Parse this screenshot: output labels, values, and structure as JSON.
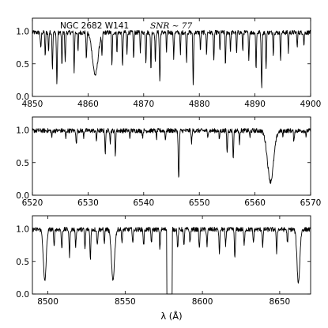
{
  "chart_data": [
    {
      "type": "line",
      "annotations": {
        "object": "NGC 2682 W141",
        "snr": "SNR ~ 77"
      },
      "xlim": [
        4850,
        4900
      ],
      "ylim": [
        0.0,
        1.2
      ],
      "xticks": [
        4850,
        4860,
        4870,
        4880,
        4890,
        4900
      ],
      "yticks": [
        0.0,
        0.5,
        1.0
      ],
      "xtick_labels": [
        "4850",
        "4860",
        "4870",
        "4880",
        "4890",
        "4900"
      ],
      "ytick_labels": [
        "0.0",
        "0.5",
        "1.0"
      ],
      "continuum": 0.98,
      "lines": [
        {
          "c": 4851.5,
          "d": 0.25,
          "w": 0.08
        },
        {
          "c": 4852.3,
          "d": 0.4,
          "w": 0.06
        },
        {
          "c": 4852.9,
          "d": 0.3,
          "w": 0.06
        },
        {
          "c": 4853.6,
          "d": 0.55,
          "w": 0.07
        },
        {
          "c": 4854.4,
          "d": 0.78,
          "w": 0.08
        },
        {
          "c": 4855.3,
          "d": 0.5,
          "w": 0.07
        },
        {
          "c": 4855.9,
          "d": 0.45,
          "w": 0.07
        },
        {
          "c": 4857.5,
          "d": 0.6,
          "w": 0.07
        },
        {
          "c": 4858.2,
          "d": 0.3,
          "w": 0.06
        },
        {
          "c": 4859.7,
          "d": 0.42,
          "w": 0.07
        },
        {
          "c": 4861.3,
          "d": 0.65,
          "w": 0.5
        },
        {
          "c": 4862.5,
          "d": 0.35,
          "w": 0.07
        },
        {
          "c": 4864.3,
          "d": 0.5,
          "w": 0.07
        },
        {
          "c": 4865.2,
          "d": 0.3,
          "w": 0.06
        },
        {
          "c": 4866.2,
          "d": 0.55,
          "w": 0.07
        },
        {
          "c": 4867.0,
          "d": 0.35,
          "w": 0.06
        },
        {
          "c": 4868.2,
          "d": 0.4,
          "w": 0.07
        },
        {
          "c": 4869.4,
          "d": 0.3,
          "w": 0.06
        },
        {
          "c": 4870.4,
          "d": 0.45,
          "w": 0.07
        },
        {
          "c": 4871.3,
          "d": 0.58,
          "w": 0.07
        },
        {
          "c": 4872.1,
          "d": 0.45,
          "w": 0.07
        },
        {
          "c": 4872.9,
          "d": 0.75,
          "w": 0.08
        },
        {
          "c": 4874.1,
          "d": 0.3,
          "w": 0.06
        },
        {
          "c": 4875.4,
          "d": 0.4,
          "w": 0.07
        },
        {
          "c": 4876.6,
          "d": 0.35,
          "w": 0.06
        },
        {
          "c": 4877.7,
          "d": 0.45,
          "w": 0.07
        },
        {
          "c": 4878.9,
          "d": 0.82,
          "w": 0.07
        },
        {
          "c": 4880.2,
          "d": 0.3,
          "w": 0.06
        },
        {
          "c": 4881.3,
          "d": 0.35,
          "w": 0.06
        },
        {
          "c": 4882.6,
          "d": 0.45,
          "w": 0.07
        },
        {
          "c": 4883.7,
          "d": 0.3,
          "w": 0.06
        },
        {
          "c": 4884.7,
          "d": 0.5,
          "w": 0.07
        },
        {
          "c": 4885.6,
          "d": 0.3,
          "w": 0.06
        },
        {
          "c": 4886.7,
          "d": 0.35,
          "w": 0.06
        },
        {
          "c": 4887.8,
          "d": 0.3,
          "w": 0.06
        },
        {
          "c": 4888.9,
          "d": 0.4,
          "w": 0.07
        },
        {
          "c": 4890.2,
          "d": 0.55,
          "w": 0.07
        },
        {
          "c": 4891.2,
          "d": 0.85,
          "w": 0.08
        },
        {
          "c": 4892.0,
          "d": 0.55,
          "w": 0.07
        },
        {
          "c": 4893.3,
          "d": 0.35,
          "w": 0.06
        },
        {
          "c": 4894.6,
          "d": 0.4,
          "w": 0.07
        },
        {
          "c": 4896.0,
          "d": 0.3,
          "w": 0.06
        },
        {
          "c": 4897.6,
          "d": 0.25,
          "w": 0.06
        },
        {
          "c": 4898.8,
          "d": 0.2,
          "w": 0.06
        }
      ]
    },
    {
      "type": "line",
      "xlim": [
        6520,
        6570
      ],
      "ylim": [
        0.0,
        1.2
      ],
      "xticks": [
        6520,
        6530,
        6540,
        6550,
        6560,
        6570
      ],
      "yticks": [
        0.0,
        0.5,
        1.0
      ],
      "xtick_labels": [
        "6520",
        "6530",
        "6540",
        "6550",
        "6560",
        "6570"
      ],
      "ytick_labels": [
        "0.0",
        "0.5",
        "1.0"
      ],
      "continuum": 0.99,
      "lines": [
        {
          "c": 6523.5,
          "d": 0.1,
          "w": 0.07
        },
        {
          "c": 6526.0,
          "d": 0.12,
          "w": 0.07
        },
        {
          "c": 6527.9,
          "d": 0.22,
          "w": 0.07
        },
        {
          "c": 6529.2,
          "d": 0.1,
          "w": 0.06
        },
        {
          "c": 6531.5,
          "d": 0.15,
          "w": 0.07
        },
        {
          "c": 6533.1,
          "d": 0.35,
          "w": 0.07
        },
        {
          "c": 6534.0,
          "d": 0.18,
          "w": 0.06
        },
        {
          "c": 6534.9,
          "d": 0.38,
          "w": 0.07
        },
        {
          "c": 6537.5,
          "d": 0.12,
          "w": 0.06
        },
        {
          "c": 6539.8,
          "d": 0.1,
          "w": 0.06
        },
        {
          "c": 6542.3,
          "d": 0.13,
          "w": 0.06
        },
        {
          "c": 6543.9,
          "d": 0.15,
          "w": 0.06
        },
        {
          "c": 6546.3,
          "d": 0.75,
          "w": 0.09
        },
        {
          "c": 6548.6,
          "d": 0.2,
          "w": 0.07
        },
        {
          "c": 6551.5,
          "d": 0.12,
          "w": 0.06
        },
        {
          "c": 6553.6,
          "d": 0.15,
          "w": 0.06
        },
        {
          "c": 6555.0,
          "d": 0.35,
          "w": 0.07
        },
        {
          "c": 6556.1,
          "d": 0.45,
          "w": 0.07
        },
        {
          "c": 6557.2,
          "d": 0.2,
          "w": 0.06
        },
        {
          "c": 6559.1,
          "d": 0.12,
          "w": 0.06
        },
        {
          "c": 6562.8,
          "d": 0.78,
          "w": 0.55
        },
        {
          "c": 6565.0,
          "d": 0.1,
          "w": 0.06
        },
        {
          "c": 6567.0,
          "d": 0.18,
          "w": 0.07
        },
        {
          "c": 6569.2,
          "d": 0.1,
          "w": 0.06
        }
      ]
    },
    {
      "type": "line",
      "xlim": [
        8490,
        8670
      ],
      "ylim": [
        0.0,
        1.2
      ],
      "xticks": [
        8500,
        8550,
        8600,
        8650
      ],
      "yticks": [
        0.0,
        0.5,
        1.0
      ],
      "xtick_labels": [
        "8500",
        "8550",
        "8600",
        "8650"
      ],
      "ytick_labels": [
        "0.0",
        "0.5",
        "1.0"
      ],
      "xlabel": "λ (Å)",
      "continuum": 0.99,
      "gap": [
        8577.0,
        8580.5
      ],
      "lines": [
        {
          "c": 8498.0,
          "d": 0.8,
          "w": 0.9
        },
        {
          "c": 8504.0,
          "d": 0.25,
          "w": 0.3
        },
        {
          "c": 8509.0,
          "d": 0.3,
          "w": 0.3
        },
        {
          "c": 8514.0,
          "d": 0.4,
          "w": 0.3
        },
        {
          "c": 8518.0,
          "d": 0.25,
          "w": 0.3
        },
        {
          "c": 8524.0,
          "d": 0.3,
          "w": 0.3
        },
        {
          "c": 8527.5,
          "d": 0.45,
          "w": 0.3
        },
        {
          "c": 8532.0,
          "d": 0.25,
          "w": 0.3
        },
        {
          "c": 8536.5,
          "d": 0.2,
          "w": 0.3
        },
        {
          "c": 8542.1,
          "d": 0.78,
          "w": 1.0
        },
        {
          "c": 8548.0,
          "d": 0.2,
          "w": 0.3
        },
        {
          "c": 8555.0,
          "d": 0.2,
          "w": 0.3
        },
        {
          "c": 8562.0,
          "d": 0.25,
          "w": 0.3
        },
        {
          "c": 8567.0,
          "d": 0.2,
          "w": 0.3
        },
        {
          "c": 8572.5,
          "d": 0.3,
          "w": 0.3
        },
        {
          "c": 8584.0,
          "d": 0.3,
          "w": 0.3
        },
        {
          "c": 8588.0,
          "d": 0.25,
          "w": 0.3
        },
        {
          "c": 8592.0,
          "d": 0.2,
          "w": 0.3
        },
        {
          "c": 8598.0,
          "d": 0.3,
          "w": 0.3
        },
        {
          "c": 8603.0,
          "d": 0.25,
          "w": 0.3
        },
        {
          "c": 8611.0,
          "d": 0.35,
          "w": 0.3
        },
        {
          "c": 8615.0,
          "d": 0.25,
          "w": 0.3
        },
        {
          "c": 8621.0,
          "d": 0.45,
          "w": 0.3
        },
        {
          "c": 8627.0,
          "d": 0.25,
          "w": 0.3
        },
        {
          "c": 8633.0,
          "d": 0.2,
          "w": 0.3
        },
        {
          "c": 8639.0,
          "d": 0.25,
          "w": 0.3
        },
        {
          "c": 8648.0,
          "d": 0.35,
          "w": 0.3
        },
        {
          "c": 8655.0,
          "d": 0.2,
          "w": 0.3
        },
        {
          "c": 8662.1,
          "d": 0.82,
          "w": 0.9
        }
      ]
    }
  ]
}
